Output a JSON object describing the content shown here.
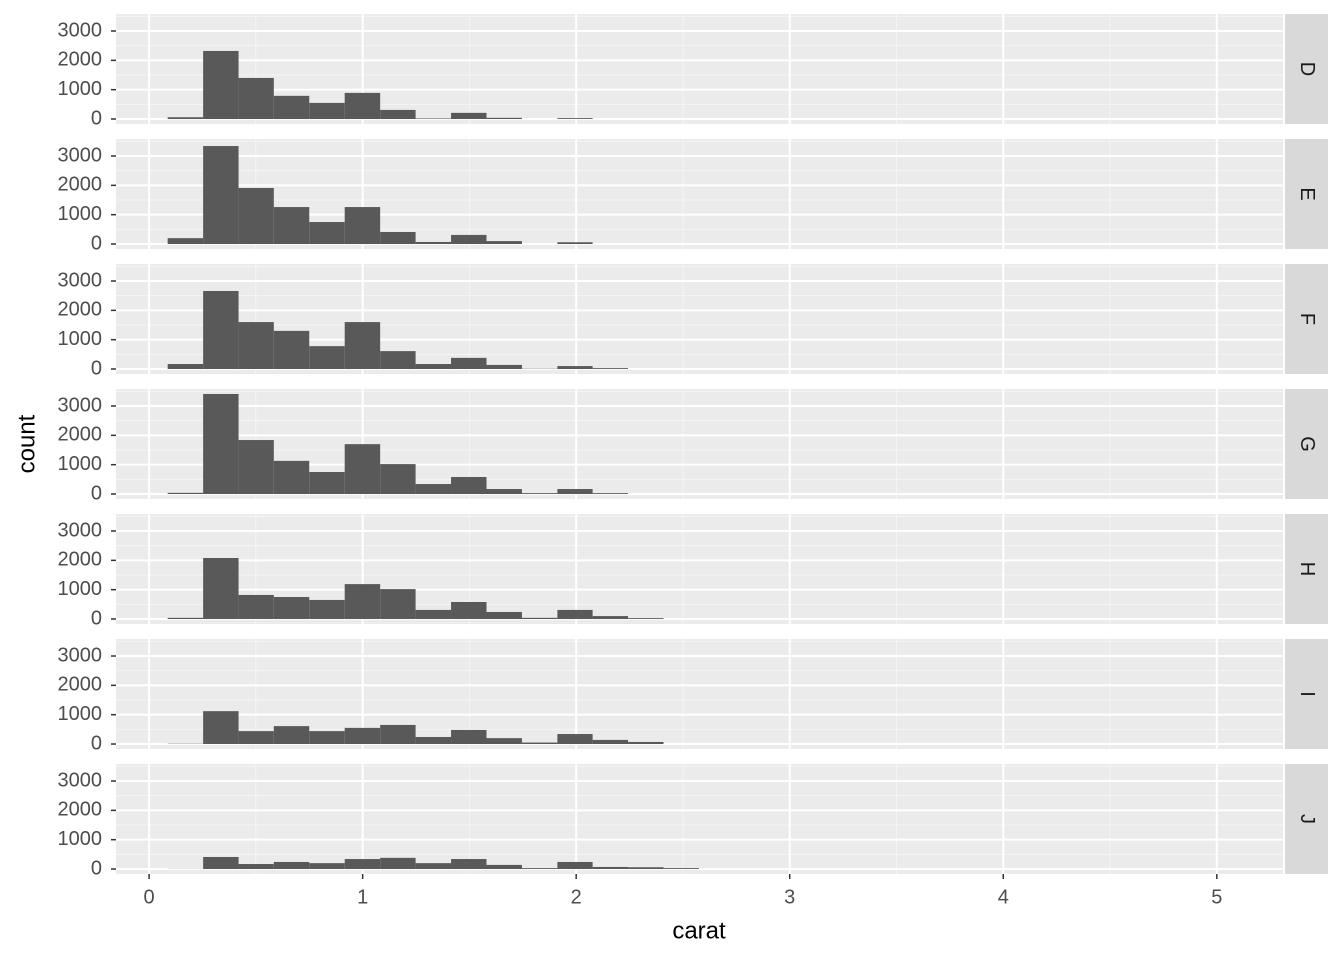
{
  "chart_data": {
    "type": "histogram",
    "xlabel": "carat",
    "ylabel": "count",
    "bins": [
      0.087,
      0.253,
      0.419,
      0.584,
      0.75,
      0.916,
      1.082,
      1.248,
      1.414,
      1.58,
      1.746,
      1.912,
      2.077,
      2.243,
      2.409,
      2.575
    ],
    "color": "#595959",
    "facets": [
      {
        "name": "D",
        "values": [
          60,
          2320,
          1400,
          790,
          550,
          890,
          310,
          20,
          210,
          40,
          0,
          30,
          0,
          0,
          0
        ]
      },
      {
        "name": "E",
        "values": [
          200,
          3340,
          1910,
          1260,
          750,
          1260,
          410,
          70,
          310,
          100,
          0,
          60,
          0,
          0,
          0
        ]
      },
      {
        "name": "F",
        "values": [
          170,
          2660,
          1600,
          1300,
          780,
          1600,
          610,
          170,
          380,
          140,
          10,
          100,
          30,
          0,
          0
        ]
      },
      {
        "name": "G",
        "values": [
          40,
          3410,
          1840,
          1130,
          750,
          1700,
          1020,
          340,
          580,
          170,
          30,
          170,
          30,
          0,
          0
        ]
      },
      {
        "name": "H",
        "values": [
          40,
          2080,
          820,
          750,
          650,
          1190,
          1020,
          310,
          580,
          240,
          40,
          310,
          100,
          30,
          0
        ]
      },
      {
        "name": "I",
        "values": [
          10,
          1120,
          440,
          610,
          440,
          550,
          650,
          240,
          480,
          200,
          50,
          340,
          140,
          70,
          0
        ]
      },
      {
        "name": "J",
        "values": [
          5,
          410,
          170,
          240,
          200,
          340,
          380,
          200,
          340,
          140,
          30,
          240,
          70,
          60,
          30
        ]
      }
    ],
    "xlim": [
      -0.155,
      5.31
    ],
    "xticks": [
      0,
      1,
      2,
      3,
      4,
      5
    ],
    "ylim": [
      -170,
      3580
    ],
    "yticks": [
      0,
      1000,
      2000,
      3000
    ],
    "grid": true
  }
}
